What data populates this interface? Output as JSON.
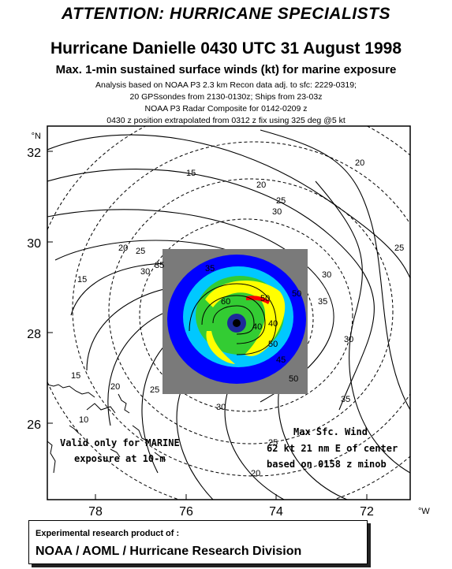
{
  "header": {
    "attention": "ATTENTION: HURRICANE SPECIALISTS",
    "title": "Hurricane Danielle 0430 UTC 31 August 1998",
    "subtitle": "Max. 1-min sustained surface winds (kt) for marine exposure",
    "info_lines": [
      "Analysis based on  NOAA P3  2.3 km  Recon data  adj. to sfc: 2229-0319;",
      "20 GPSsondes from 2130-0130z; Ships from 23-03z",
      "NOAA P3 Radar Composite  for 0142-0209 z",
      "0430 z position extrapolated from 0312 z fix using 325 deg @5 kt"
    ]
  },
  "map": {
    "lat_ticks": [
      "32",
      "30",
      "28",
      "26"
    ],
    "lon_ticks": [
      "78",
      "76",
      "74",
      "72"
    ],
    "lat_unit": "°N",
    "lon_unit": "°W",
    "contour_labels": [
      "15",
      "20",
      "25",
      "30",
      "35",
      "20",
      "25",
      "30",
      "15",
      "20",
      "25",
      "30",
      "35",
      "15",
      "10",
      "20",
      "25",
      "30",
      "30",
      "50",
      "50",
      "40",
      "35",
      "20",
      "25",
      "60",
      "50",
      "55",
      "40",
      "45",
      "50",
      "35"
    ],
    "note_left": [
      "Valid only for MARINE",
      "exposure at 10-m"
    ],
    "note_right": [
      "Max Sfc. Wind",
      "62 kt  21 nm E of center",
      "based on 0158 z minob"
    ],
    "colors": {
      "radar_background": "#7a7a7a",
      "radar_low": "#0000ff",
      "radar_mid": "#00c8ff",
      "radar_high": "#33cc33",
      "radar_heavy": "#ffff00",
      "radar_intense": "#ff0000"
    }
  },
  "footer": {
    "line1": "Experimental research product of :",
    "line2": "NOAA / AOML / Hurricane Research Division"
  }
}
